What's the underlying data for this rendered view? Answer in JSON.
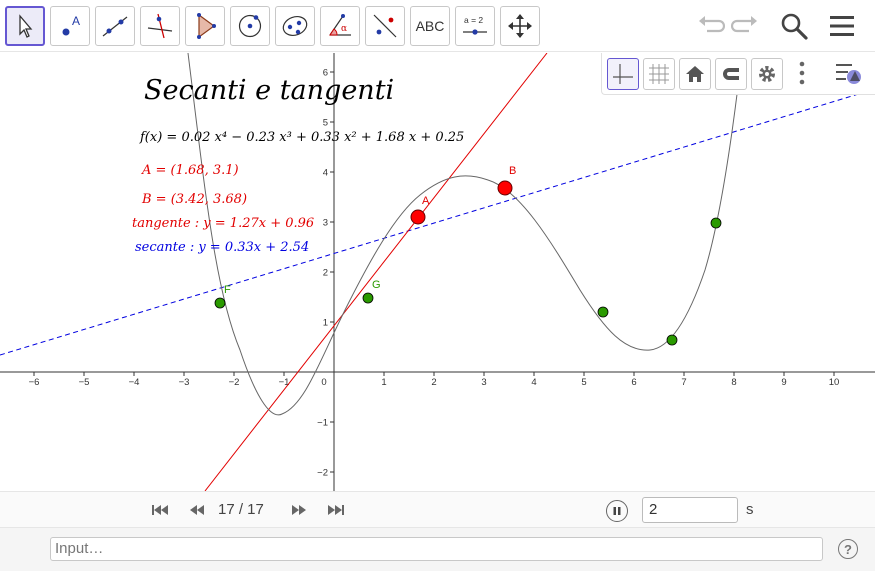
{
  "toolbar": {
    "tools": [
      {
        "name": "move-tool",
        "icon": "arrow-cursor-icon",
        "active": true
      },
      {
        "name": "point-tool",
        "icon": "point-icon",
        "label": "A"
      },
      {
        "name": "line-tool",
        "icon": "line-icon"
      },
      {
        "name": "perpendicular-line-tool",
        "icon": "perpendicular-icon"
      },
      {
        "name": "polygon-tool",
        "icon": "polygon-icon"
      },
      {
        "name": "circle-tool",
        "icon": "circle-icon"
      },
      {
        "name": "conic-tool",
        "icon": "ellipse-icon"
      },
      {
        "name": "angle-tool",
        "icon": "angle-icon",
        "label": "α"
      },
      {
        "name": "reflect-tool",
        "icon": "reflect-icon"
      },
      {
        "name": "text-tool",
        "icon": "text-icon",
        "label": "ABC"
      },
      {
        "name": "slider-tool",
        "icon": "slider-icon",
        "label": "a = 2"
      },
      {
        "name": "move-graphics-tool",
        "icon": "move-graphics-icon"
      }
    ],
    "right_icons": [
      "undo-icon",
      "redo-icon",
      "search-icon",
      "menu-icon"
    ]
  },
  "stylebar": {
    "buttons": [
      "axes-icon",
      "grid-icon",
      "home-icon",
      "magnet-icon",
      "gear-icon",
      "more-vertical-icon"
    ],
    "toggle_icon": "stylebar-toggle-icon"
  },
  "graphics": {
    "title": "Secanti e tangenti",
    "function_label": "f(x) = 0.02 x⁴ − 0.23 x³ + 0.33 x² + 1.68 x + 0.25",
    "point_A_label": "A = (1.68, 3.1)",
    "point_B_label": "B = (3.42, 3.68)",
    "tangent_label": "tangente : y = 1.27x + 0.96",
    "secant_label": "secante : y = 0.33x + 2.54",
    "colors": {
      "red": "#e20000",
      "blue": "#0000e0",
      "green": "#2a9a00",
      "curve": "#666666"
    },
    "x_ticks": [
      "−6",
      "−5",
      "−4",
      "−3",
      "−2",
      "−1",
      "0",
      "1",
      "2",
      "3",
      "4",
      "5",
      "6",
      "7",
      "8",
      "9",
      "10"
    ],
    "y_ticks": [
      "−2",
      "−1",
      "1",
      "2",
      "3",
      "4",
      "5",
      "6"
    ],
    "points": {
      "A": "A",
      "B": "B",
      "F": "F",
      "G": "G"
    }
  },
  "player": {
    "counter": "17 / 17",
    "speed": "2",
    "unit": "s",
    "icons": [
      "skip-first-icon",
      "previous-icon",
      "next-icon",
      "skip-last-icon",
      "pause-icon"
    ]
  },
  "input": {
    "placeholder": "Input…",
    "help_label": "?"
  }
}
